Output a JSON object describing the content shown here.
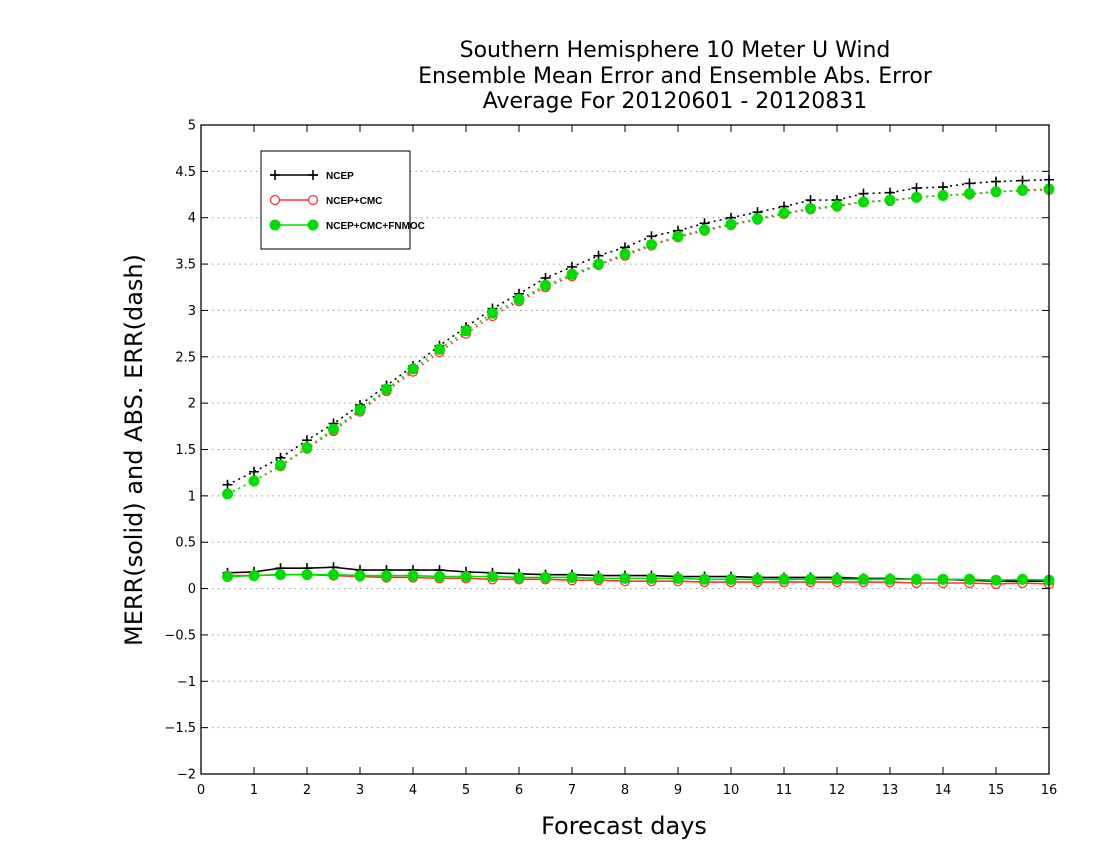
{
  "chart_data": {
    "type": "line",
    "title": [
      "Southern Hemisphere 10 Meter U Wind",
      "Ensemble Mean Error and Ensemble Abs. Error",
      "Average For 20120601 - 20120831"
    ],
    "xlabel": "Forecast days",
    "ylabel": "MERR(solid) and ABS. ERR(dash)",
    "xlim": [
      0,
      16
    ],
    "ylim": [
      -2,
      5
    ],
    "xticks": [
      "0",
      "1",
      "2",
      "3",
      "4",
      "5",
      "6",
      "7",
      "8",
      "9",
      "10",
      "11",
      "12",
      "13",
      "14",
      "15",
      "16"
    ],
    "yticks": [
      "−2",
      "−1.5",
      "−1",
      "−0.5",
      "0",
      "0.5",
      "1",
      "1.5",
      "2",
      "2.5",
      "3",
      "3.5",
      "4",
      "4.5",
      "5"
    ],
    "grid": "horizontal dotted",
    "legend_position": "top-left",
    "x": [
      0.5,
      1,
      1.5,
      2,
      2.5,
      3,
      3.5,
      4,
      4.5,
      5,
      5.5,
      6,
      6.5,
      7,
      7.5,
      8,
      8.5,
      9,
      9.5,
      10,
      10.5,
      11,
      11.5,
      12,
      12.5,
      13,
      13.5,
      14,
      14.5,
      15,
      15.5,
      16
    ],
    "series": [
      {
        "name": "NCEP",
        "color": "#000000",
        "marker": "plus",
        "merr": [
          0.17,
          0.18,
          0.22,
          0.22,
          0.23,
          0.2,
          0.2,
          0.2,
          0.2,
          0.18,
          0.17,
          0.16,
          0.15,
          0.15,
          0.14,
          0.14,
          0.14,
          0.13,
          0.13,
          0.13,
          0.12,
          0.12,
          0.12,
          0.12,
          0.11,
          0.11,
          0.1,
          0.1,
          0.09,
          0.08,
          0.08,
          0.08
        ],
        "abs_err": [
          1.12,
          1.26,
          1.41,
          1.6,
          1.78,
          1.98,
          2.19,
          2.4,
          2.62,
          2.82,
          3.02,
          3.18,
          3.35,
          3.47,
          3.59,
          3.68,
          3.8,
          3.86,
          3.94,
          4.0,
          4.06,
          4.12,
          4.19,
          4.19,
          4.26,
          4.27,
          4.32,
          4.33,
          4.37,
          4.39,
          4.4,
          4.41
        ]
      },
      {
        "name": "NCEP+CMC",
        "color": "#ff3333",
        "marker": "open-circle",
        "merr": [
          0.14,
          0.14,
          0.15,
          0.15,
          0.14,
          0.13,
          0.12,
          0.12,
          0.11,
          0.11,
          0.1,
          0.1,
          0.1,
          0.09,
          0.09,
          0.08,
          0.08,
          0.08,
          0.07,
          0.07,
          0.07,
          0.07,
          0.07,
          0.07,
          0.07,
          0.07,
          0.06,
          0.06,
          0.06,
          0.05,
          0.06,
          0.05
        ],
        "abs_err": [
          1.02,
          1.16,
          1.32,
          1.51,
          1.7,
          1.91,
          2.13,
          2.34,
          2.55,
          2.75,
          2.94,
          3.1,
          3.25,
          3.37,
          3.49,
          3.59,
          3.7,
          3.79,
          3.86,
          3.92,
          3.98,
          4.04,
          4.09,
          4.12,
          4.17,
          4.18,
          4.22,
          4.24,
          4.25,
          4.28,
          4.29,
          4.3
        ]
      },
      {
        "name": "NCEP+CMC+FNMOC",
        "color": "#00dd00",
        "marker": "filled-circle",
        "merr": [
          0.13,
          0.14,
          0.15,
          0.15,
          0.15,
          0.14,
          0.14,
          0.14,
          0.13,
          0.13,
          0.13,
          0.12,
          0.12,
          0.12,
          0.11,
          0.11,
          0.11,
          0.11,
          0.1,
          0.1,
          0.1,
          0.1,
          0.1,
          0.1,
          0.1,
          0.1,
          0.1,
          0.1,
          0.1,
          0.09,
          0.1,
          0.09
        ],
        "abs_err": [
          1.02,
          1.16,
          1.33,
          1.52,
          1.72,
          1.93,
          2.15,
          2.37,
          2.58,
          2.78,
          2.97,
          3.12,
          3.27,
          3.39,
          3.5,
          3.61,
          3.71,
          3.8,
          3.87,
          3.93,
          3.99,
          4.05,
          4.1,
          4.13,
          4.17,
          4.19,
          4.22,
          4.24,
          4.26,
          4.28,
          4.3,
          4.31
        ]
      }
    ]
  }
}
